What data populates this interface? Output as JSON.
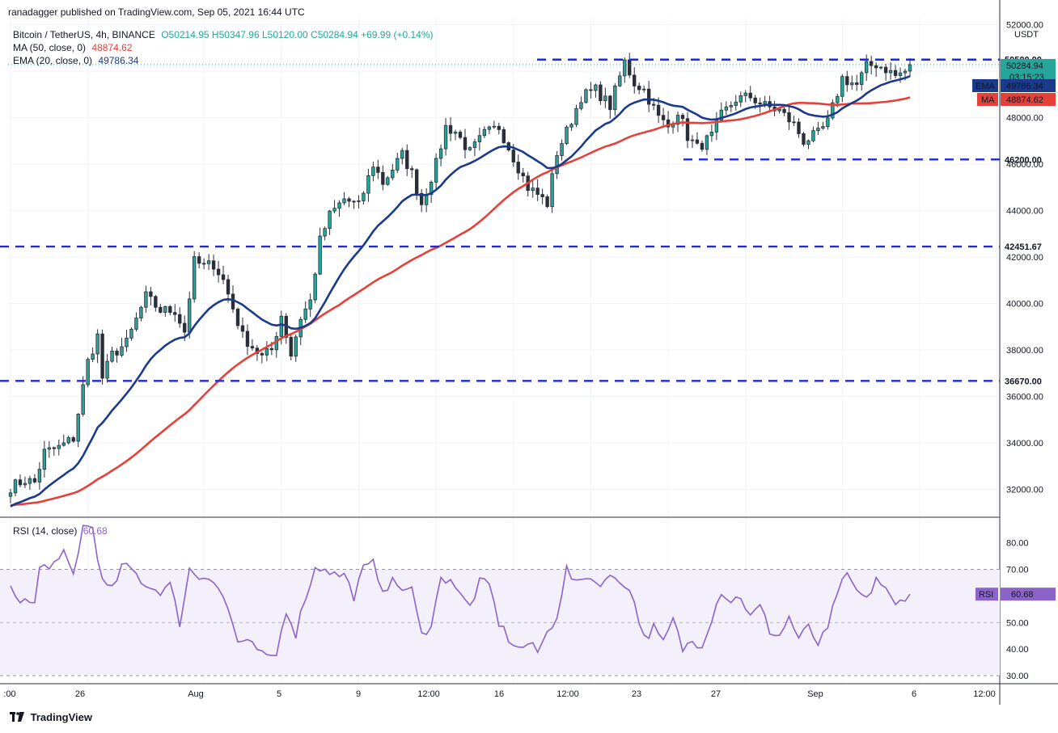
{
  "header": {
    "published": "ranadagger published on TradingView.com, Sep 05, 2021 16:44 UTC"
  },
  "legend": {
    "symbol": "Bitcoin / TetherUS, 4h, BINANCE",
    "ohlc": "O50214.95 H50347.96 L50120.00 C50284.94 +69.99 (+0.14%)",
    "ma_label": "MA (50, close, 0)",
    "ma_value": "48874.62",
    "ema_label": "EMA (20, close, 0)",
    "ema_value": "49786.34",
    "rsi_label": "RSI (14, close)",
    "rsi_value": "60.68"
  },
  "price_axis": {
    "unit": "USDT",
    "ticks": [
      "52000.00",
      "50000.00",
      "48000.00",
      "46000.00",
      "44000.00",
      "42000.00",
      "40000.00",
      "38000.00",
      "36000.00",
      "34000.00",
      "32000.00"
    ],
    "last_price": "50284.94",
    "countdown": "03:15:23",
    "ema_tag": "EMA",
    "ema_value": "49786.34",
    "ma_tag": "MA",
    "ma_value": "48874.62"
  },
  "levels": [
    {
      "label": "50500.00",
      "value": 50500
    },
    {
      "label": "46200.00",
      "value": 46200
    },
    {
      "label": "42451.67",
      "value": 42451.67
    },
    {
      "label": "36670.00",
      "value": 36670
    }
  ],
  "rsi_axis": {
    "ticks": [
      "80.00",
      "70.00",
      "60.00",
      "50.00",
      "40.00",
      "30.00"
    ],
    "tag": "RSI",
    "value": "60.68"
  },
  "time_axis": {
    "ticks": [
      ":00",
      "26",
      "Aug",
      "5",
      "9",
      "12:00",
      "16",
      "12:00",
      "23",
      "27",
      "Sep",
      "6",
      "12:00"
    ]
  },
  "colors": {
    "ema": "#1b3a8c",
    "ma": "#e5403a",
    "level": "#1f2ad6",
    "rsi": "#8c63c9",
    "up": "#26a69a",
    "down": "#ef5350",
    "candle": "#2a2e39"
  },
  "footer": {
    "brand": "TradingView"
  },
  "chart_data": {
    "type": "candlestick",
    "symbol": "Bitcoin / TetherUS",
    "interval": "4h",
    "ylim": [
      30800,
      52300
    ],
    "rsi_ylim": [
      27,
      89
    ],
    "series": [
      {
        "name": "Price",
        "keypoints": [
          [
            0,
            32100
          ],
          [
            3,
            32400
          ],
          [
            5,
            32300
          ],
          [
            7,
            33600
          ],
          [
            10,
            33800
          ],
          [
            13,
            34200
          ],
          [
            16,
            37500
          ],
          [
            18,
            38600
          ],
          [
            19,
            36800
          ],
          [
            21,
            37800
          ],
          [
            24,
            38300
          ],
          [
            28,
            40300
          ],
          [
            31,
            39700
          ],
          [
            34,
            39700
          ],
          [
            36,
            38800
          ],
          [
            38,
            41800
          ],
          [
            40,
            41600
          ],
          [
            42,
            41700
          ],
          [
            44,
            41000
          ],
          [
            48,
            38600
          ],
          [
            52,
            37700
          ],
          [
            54,
            38000
          ],
          [
            56,
            39500
          ],
          [
            58,
            37800
          ],
          [
            60,
            39400
          ],
          [
            62,
            40100
          ],
          [
            64,
            42700
          ],
          [
            66,
            43800
          ],
          [
            69,
            44500
          ],
          [
            72,
            44200
          ],
          [
            75,
            46000
          ],
          [
            77,
            45200
          ],
          [
            79,
            45800
          ],
          [
            81,
            46400
          ],
          [
            83,
            45600
          ],
          [
            85,
            44300
          ],
          [
            88,
            46000
          ],
          [
            90,
            47600
          ],
          [
            92,
            47400
          ],
          [
            95,
            46500
          ],
          [
            98,
            47300
          ],
          [
            101,
            47600
          ],
          [
            104,
            46300
          ],
          [
            107,
            45000
          ],
          [
            109,
            44700
          ],
          [
            111,
            44300
          ],
          [
            113,
            46500
          ],
          [
            115,
            47400
          ],
          [
            118,
            48900
          ],
          [
            121,
            49200
          ],
          [
            124,
            48500
          ],
          [
            127,
            50400
          ],
          [
            129,
            49500
          ],
          [
            131,
            49200
          ],
          [
            134,
            48000
          ],
          [
            136,
            47600
          ],
          [
            138,
            48300
          ],
          [
            140,
            47200
          ],
          [
            142,
            46700
          ],
          [
            145,
            47200
          ],
          [
            147,
            48100
          ],
          [
            150,
            48800
          ],
          [
            153,
            48900
          ],
          [
            156,
            48500
          ],
          [
            159,
            48300
          ],
          [
            162,
            47700
          ],
          [
            164,
            47000
          ],
          [
            167,
            47300
          ],
          [
            169,
            47800
          ],
          [
            172,
            49700
          ],
          [
            175,
            49400
          ],
          [
            177,
            50200
          ],
          [
            179,
            50300
          ],
          [
            181,
            50100
          ],
          [
            183,
            49800
          ],
          [
            185,
            50000
          ],
          [
            186,
            50280
          ]
        ]
      },
      {
        "name": "EMA (20, close, 0)",
        "last": 49786.34
      },
      {
        "name": "MA (50, close, 0)",
        "last": 48874.62
      }
    ],
    "rsi_series": [
      {
        "name": "RSI (14, close)",
        "keypoints": [
          [
            0,
            62
          ],
          [
            3,
            58
          ],
          [
            5,
            57
          ],
          [
            6,
            70
          ],
          [
            8,
            72
          ],
          [
            10,
            72
          ],
          [
            11,
            76
          ],
          [
            13,
            68
          ],
          [
            15,
            86
          ],
          [
            17,
            86
          ],
          [
            19,
            65
          ],
          [
            21,
            62
          ],
          [
            23,
            71
          ],
          [
            25,
            70
          ],
          [
            27,
            66
          ],
          [
            29,
            63
          ],
          [
            31,
            62
          ],
          [
            33,
            64
          ],
          [
            35,
            50
          ],
          [
            37,
            70
          ],
          [
            39,
            67
          ],
          [
            41,
            68
          ],
          [
            43,
            63
          ],
          [
            45,
            55
          ],
          [
            47,
            43
          ],
          [
            49,
            42
          ],
          [
            51,
            40
          ],
          [
            53,
            36
          ],
          [
            55,
            38
          ],
          [
            57,
            55
          ],
          [
            59,
            46
          ],
          [
            61,
            60
          ],
          [
            63,
            70
          ],
          [
            65,
            71
          ],
          [
            67,
            68
          ],
          [
            69,
            68
          ],
          [
            71,
            60
          ],
          [
            73,
            70
          ],
          [
            75,
            72
          ],
          [
            77,
            63
          ],
          [
            79,
            65
          ],
          [
            81,
            63
          ],
          [
            83,
            62
          ],
          [
            85,
            45
          ],
          [
            87,
            50
          ],
          [
            89,
            66
          ],
          [
            91,
            67
          ],
          [
            93,
            60
          ],
          [
            95,
            56
          ],
          [
            97,
            65
          ],
          [
            99,
            64
          ],
          [
            101,
            50
          ],
          [
            103,
            44
          ],
          [
            105,
            40
          ],
          [
            107,
            42
          ],
          [
            109,
            39
          ],
          [
            111,
            46
          ],
          [
            113,
            53
          ],
          [
            115,
            70
          ],
          [
            117,
            64
          ],
          [
            119,
            68
          ],
          [
            121,
            65
          ],
          [
            123,
            66
          ],
          [
            125,
            67
          ],
          [
            127,
            65
          ],
          [
            129,
            58
          ],
          [
            131,
            44
          ],
          [
            133,
            48
          ],
          [
            135,
            42
          ],
          [
            137,
            51
          ],
          [
            139,
            40
          ],
          [
            141,
            43
          ],
          [
            143,
            42
          ],
          [
            145,
            52
          ],
          [
            147,
            62
          ],
          [
            149,
            58
          ],
          [
            151,
            60
          ],
          [
            153,
            52
          ],
          [
            155,
            56
          ],
          [
            157,
            47
          ],
          [
            159,
            45
          ],
          [
            161,
            52
          ],
          [
            163,
            44
          ],
          [
            165,
            48
          ],
          [
            167,
            42
          ],
          [
            169,
            47
          ],
          [
            171,
            62
          ],
          [
            173,
            67
          ],
          [
            175,
            62
          ],
          [
            177,
            58
          ],
          [
            179,
            67
          ],
          [
            181,
            62
          ],
          [
            183,
            56
          ],
          [
            185,
            60
          ],
          [
            186,
            60.68
          ]
        ]
      }
    ],
    "rsi_band": [
      30,
      70
    ],
    "grid": true,
    "legend_position": "top-left"
  }
}
